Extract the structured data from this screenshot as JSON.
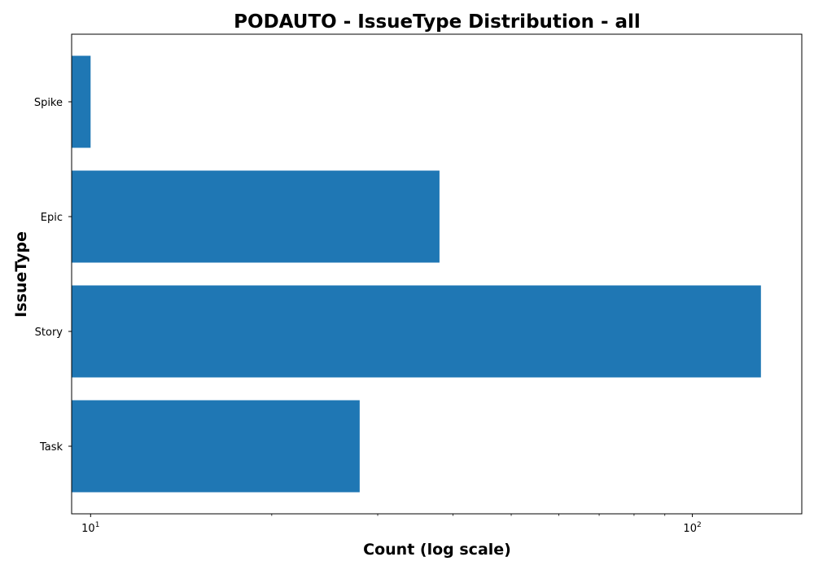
{
  "chart_data": {
    "type": "bar",
    "orientation": "horizontal",
    "title": "PODAUTO - IssueType Distribution - all",
    "xlabel": "Count (log scale)",
    "ylabel": "IssueType",
    "x_scale": "log",
    "xlim": [
      9.3,
      152
    ],
    "x_ticks": [
      {
        "base": "10",
        "exp": "1",
        "value": 10
      },
      {
        "base": "10",
        "exp": "2",
        "value": 100
      }
    ],
    "categories": [
      "Task",
      "Story",
      "Epic",
      "Spike"
    ],
    "values": [
      28,
      130,
      38,
      10
    ],
    "bar_color": "#1f77b4",
    "grid": false,
    "legend": "none"
  }
}
